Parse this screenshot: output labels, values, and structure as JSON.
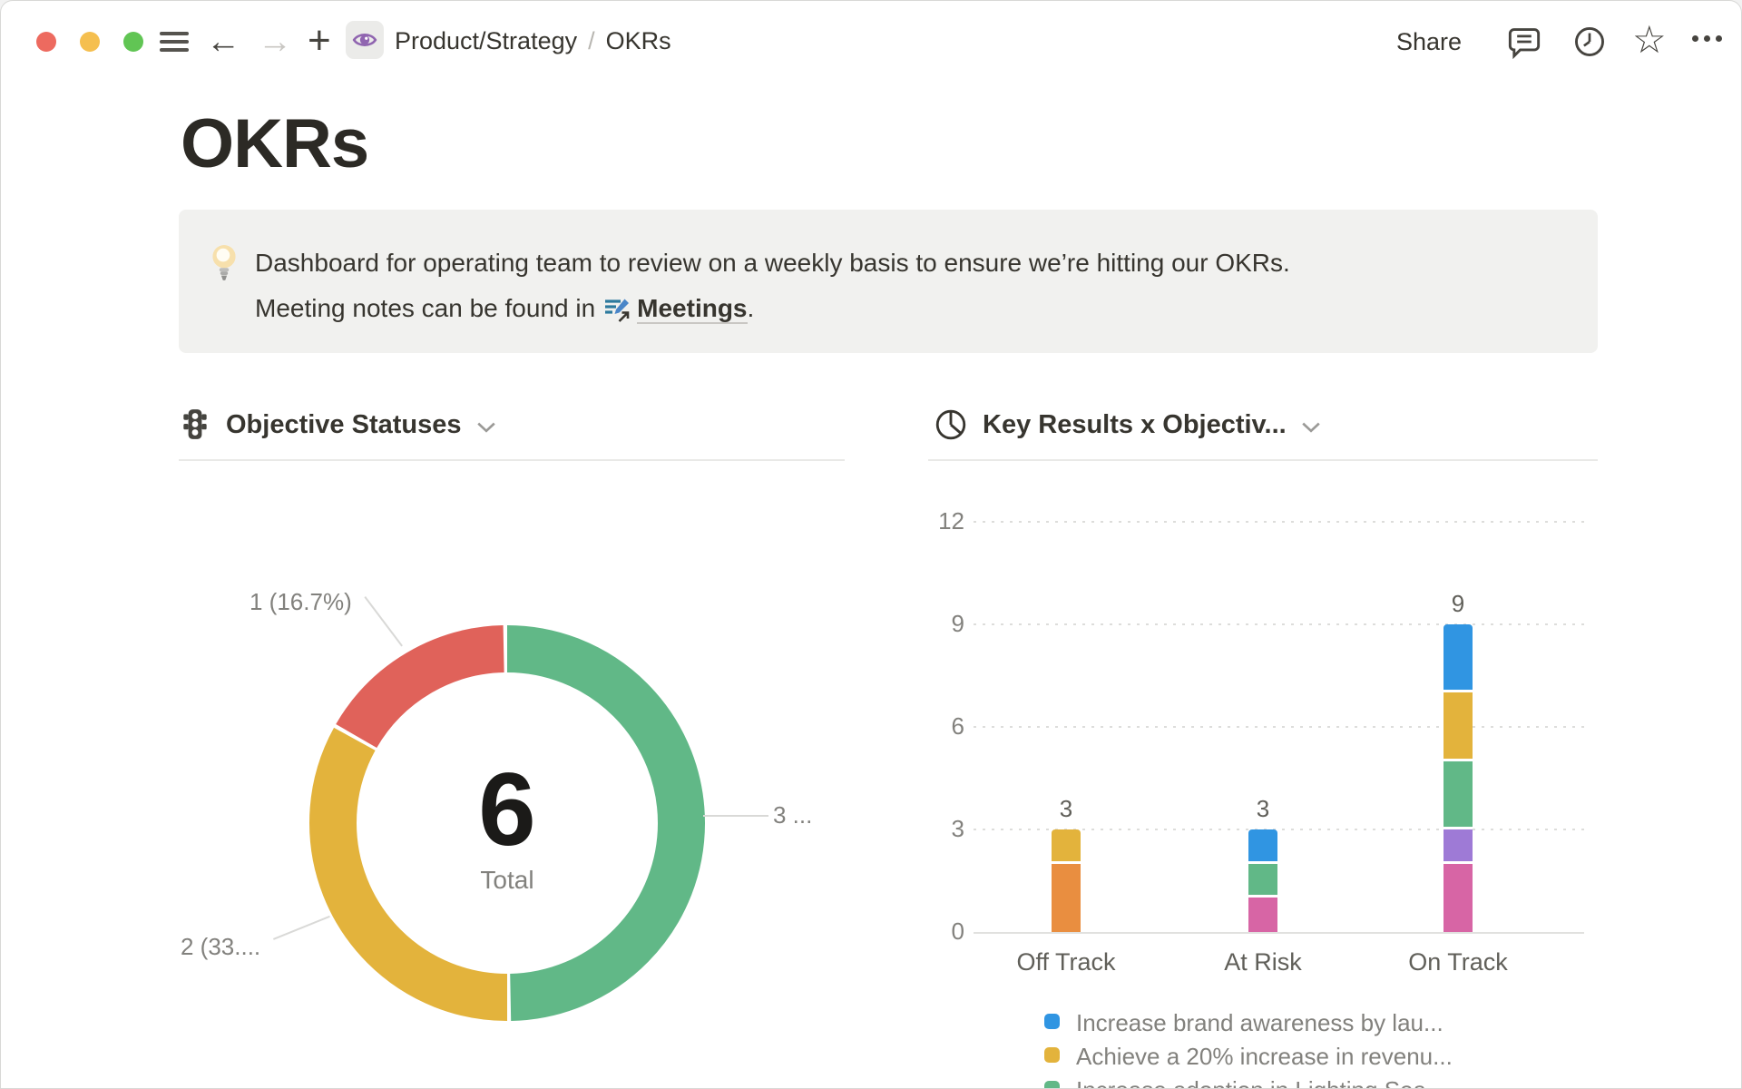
{
  "topbar": {
    "breadcrumb": {
      "parent": "Product/Strategy",
      "separator": "/",
      "current": "OKRs"
    },
    "share_label": "Share",
    "icons": {
      "back": "←",
      "forward": "→",
      "add": "+",
      "star": "☆"
    }
  },
  "page": {
    "title": "OKRs",
    "callout": {
      "icon": "lightbulb-emoji",
      "line1": "Dashboard for operating team to review on a weekly basis to ensure we’re hitting our OKRs.",
      "line2_prefix": "Meeting notes can be found in",
      "link_icon": "meeting-notes-page-icon",
      "link_text": "Meetings",
      "line2_suffix": "."
    }
  },
  "chart_data": [
    {
      "type": "pie",
      "subtype": "donut",
      "title": "Objective Statuses",
      "header_icon": "traffic-light-icon",
      "center_value": "6",
      "center_label": "Total",
      "start": "top",
      "direction": "clockwise",
      "slices": [
        {
          "value": 3,
          "percent": 50.0,
          "color": "#61b887",
          "callout_label": "3 ..."
        },
        {
          "value": 2,
          "percent": 33.3,
          "color": "#e3b33c",
          "callout_label": "2 (33...."
        },
        {
          "value": 1,
          "percent": 16.7,
          "color": "#e0625a",
          "callout_label": "1 (16.7%)"
        }
      ]
    },
    {
      "type": "bar",
      "stacked": true,
      "title": "Key Results x Objectiv...",
      "header_icon": "pie-chart-icon",
      "categories": [
        "Off Track",
        "At Risk",
        "On Track"
      ],
      "totals": [
        3,
        3,
        9
      ],
      "ylim": [
        0,
        12
      ],
      "yticks": [
        0,
        3,
        6,
        9,
        12
      ],
      "grid": "dotted-horizontal",
      "stacks": [
        [
          {
            "color": "#e98e40",
            "value": 2
          },
          {
            "color": "#e3b33c",
            "value": 1
          }
        ],
        [
          {
            "color": "#d765a5",
            "value": 1
          },
          {
            "color": "#61b887",
            "value": 1
          },
          {
            "color": "#3095e2",
            "value": 1
          }
        ],
        [
          {
            "color": "#d765a5",
            "value": 2
          },
          {
            "color": "#9e7ad6",
            "value": 1
          },
          {
            "color": "#61b887",
            "value": 2
          },
          {
            "color": "#e3b33c",
            "value": 2
          },
          {
            "color": "#3095e2",
            "value": 2
          }
        ]
      ],
      "legend_position": "bottom",
      "legend": [
        {
          "color": "#3095e2",
          "label": "Increase brand awareness by lau..."
        },
        {
          "color": "#e3b33c",
          "label": "Achieve a 20% increase in revenu..."
        },
        {
          "color": "#61b887",
          "label": "Increase adoption in Lighting Sea..."
        }
      ]
    }
  ]
}
